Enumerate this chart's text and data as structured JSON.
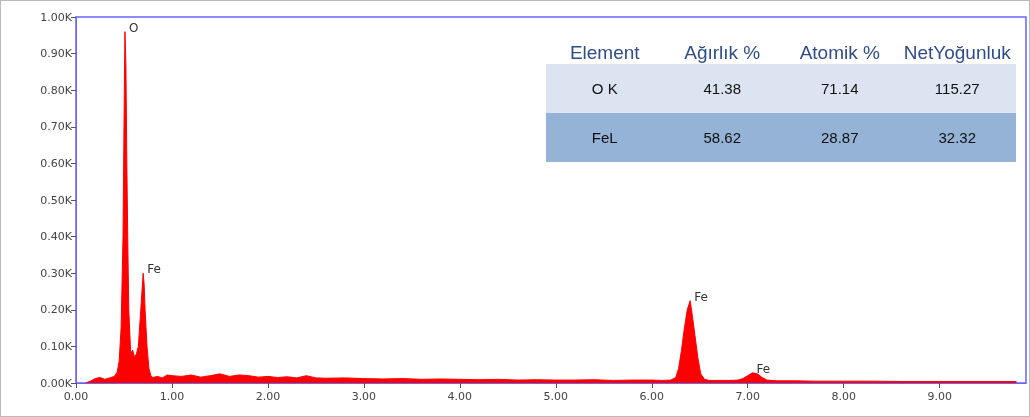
{
  "chart_data": {
    "type": "area",
    "x": [
      0.1,
      0.15,
      0.2,
      0.25,
      0.3,
      0.35,
      0.4,
      0.43,
      0.45,
      0.47,
      0.49,
      0.5,
      0.51,
      0.52,
      0.53,
      0.54,
      0.55,
      0.57,
      0.59,
      0.61,
      0.63,
      0.65,
      0.67,
      0.69,
      0.7,
      0.71,
      0.72,
      0.74,
      0.76,
      0.78,
      0.8,
      0.85,
      0.9,
      0.95,
      1.0,
      1.1,
      1.2,
      1.3,
      1.4,
      1.5,
      1.6,
      1.7,
      1.8,
      1.9,
      2.0,
      2.1,
      2.2,
      2.3,
      2.4,
      2.5,
      2.6,
      2.8,
      3.0,
      3.2,
      3.4,
      3.6,
      3.8,
      4.0,
      4.2,
      4.4,
      4.6,
      4.8,
      5.0,
      5.2,
      5.4,
      5.6,
      5.8,
      6.0,
      6.1,
      6.2,
      6.25,
      6.28,
      6.31,
      6.34,
      6.37,
      6.4,
      6.42,
      6.45,
      6.48,
      6.51,
      6.55,
      6.6,
      6.7,
      6.8,
      6.9,
      6.95,
      7.0,
      7.05,
      7.1,
      7.15,
      7.2,
      7.3,
      7.5,
      7.7,
      8.0,
      8.3,
      8.6,
      9.0,
      9.4,
      9.8
    ],
    "series": [
      {
        "color": "#ff0000",
        "values": [
          0,
          5,
          12,
          15,
          10,
          14,
          18,
          30,
          60,
          150,
          400,
          700,
          960,
          870,
          600,
          380,
          200,
          80,
          90,
          70,
          80,
          100,
          180,
          260,
          300,
          270,
          200,
          100,
          40,
          20,
          15,
          18,
          14,
          22,
          20,
          18,
          22,
          16,
          20,
          25,
          18,
          22,
          20,
          16,
          18,
          15,
          17,
          14,
          20,
          14,
          13,
          14,
          12,
          11,
          12,
          10,
          11,
          10,
          9,
          10,
          8,
          9,
          8,
          8,
          9,
          7,
          8,
          8,
          7,
          8,
          15,
          40,
          90,
          150,
          200,
          225,
          190,
          130,
          70,
          25,
          10,
          7,
          7,
          7,
          8,
          12,
          20,
          28,
          25,
          15,
          8,
          6,
          6,
          5,
          5,
          5,
          4,
          4,
          4,
          4
        ]
      }
    ],
    "xlim": [
      0,
      9.9
    ],
    "xticks": [
      {
        "value": 0,
        "label": "0.00"
      },
      {
        "value": 1,
        "label": "1.00"
      },
      {
        "value": 2,
        "label": "2.00"
      },
      {
        "value": 3,
        "label": "3.00"
      },
      {
        "value": 4,
        "label": "4.00"
      },
      {
        "value": 5,
        "label": "5.00"
      },
      {
        "value": 6,
        "label": "6.00"
      },
      {
        "value": 7,
        "label": "7.00"
      },
      {
        "value": 8,
        "label": "8.00"
      },
      {
        "value": 9,
        "label": "9.00"
      }
    ],
    "ylim": [
      0,
      1000
    ],
    "yticks": [
      {
        "value": 0,
        "label": "0.00K"
      },
      {
        "value": 100,
        "label": "0.10K"
      },
      {
        "value": 200,
        "label": "0.20K"
      },
      {
        "value": 300,
        "label": "0.30K"
      },
      {
        "value": 400,
        "label": "0.40K"
      },
      {
        "value": 500,
        "label": "0.50K"
      },
      {
        "value": 600,
        "label": "0.60K"
      },
      {
        "value": 700,
        "label": "0.70K"
      },
      {
        "value": 800,
        "label": "0.80K"
      },
      {
        "value": 900,
        "label": "0.90K"
      },
      {
        "value": 1000,
        "label": "1.00K"
      }
    ],
    "grid": false,
    "marker": "none",
    "annotations": [
      {
        "text": "O",
        "x": 0.51,
        "y": 960
      },
      {
        "text": "Fe",
        "x": 0.7,
        "y": 300
      },
      {
        "text": "Fe",
        "x": 6.4,
        "y": 225
      },
      {
        "text": "Fe",
        "x": 7.05,
        "y": 28
      },
      "Element",
      "Ağırlık %",
      "Atomik %",
      "NetYoğunluk",
      "O K",
      "41.38",
      "71.14",
      "115.27",
      "FeL",
      "58.62",
      "28.87",
      "32.32"
    ]
  }
}
